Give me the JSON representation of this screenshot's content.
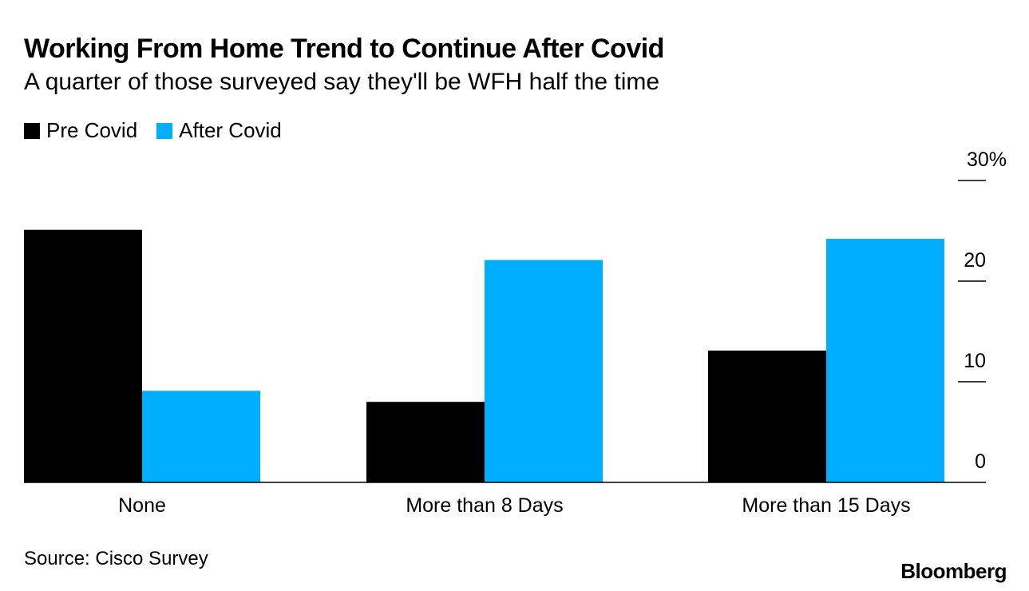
{
  "title": "Working From Home Trend to Continue After Covid",
  "subtitle": "A quarter of those surveyed say they'll be WFH half the time",
  "source": "Source: Cisco Survey",
  "brand": "Bloomberg",
  "colors": {
    "pre": "#000000",
    "after": "#00aeff"
  },
  "chart_data": {
    "type": "bar",
    "title": "Working From Home Trend to Continue After Covid",
    "categories": [
      "None",
      "More than 8 Days",
      "More than 15 Days"
    ],
    "series": [
      {
        "name": "Pre Covid",
        "values": [
          25.1,
          8.0,
          13.1
        ]
      },
      {
        "name": "After Covid",
        "values": [
          9.1,
          22.1,
          24.2
        ]
      }
    ],
    "ylim": [
      0,
      30
    ],
    "yticks": [
      0,
      10,
      20,
      30
    ],
    "ytick_labels": [
      "0",
      "10",
      "20",
      "30%"
    ],
    "ylabel": "",
    "xlabel": "",
    "legend_position": "top-left"
  }
}
